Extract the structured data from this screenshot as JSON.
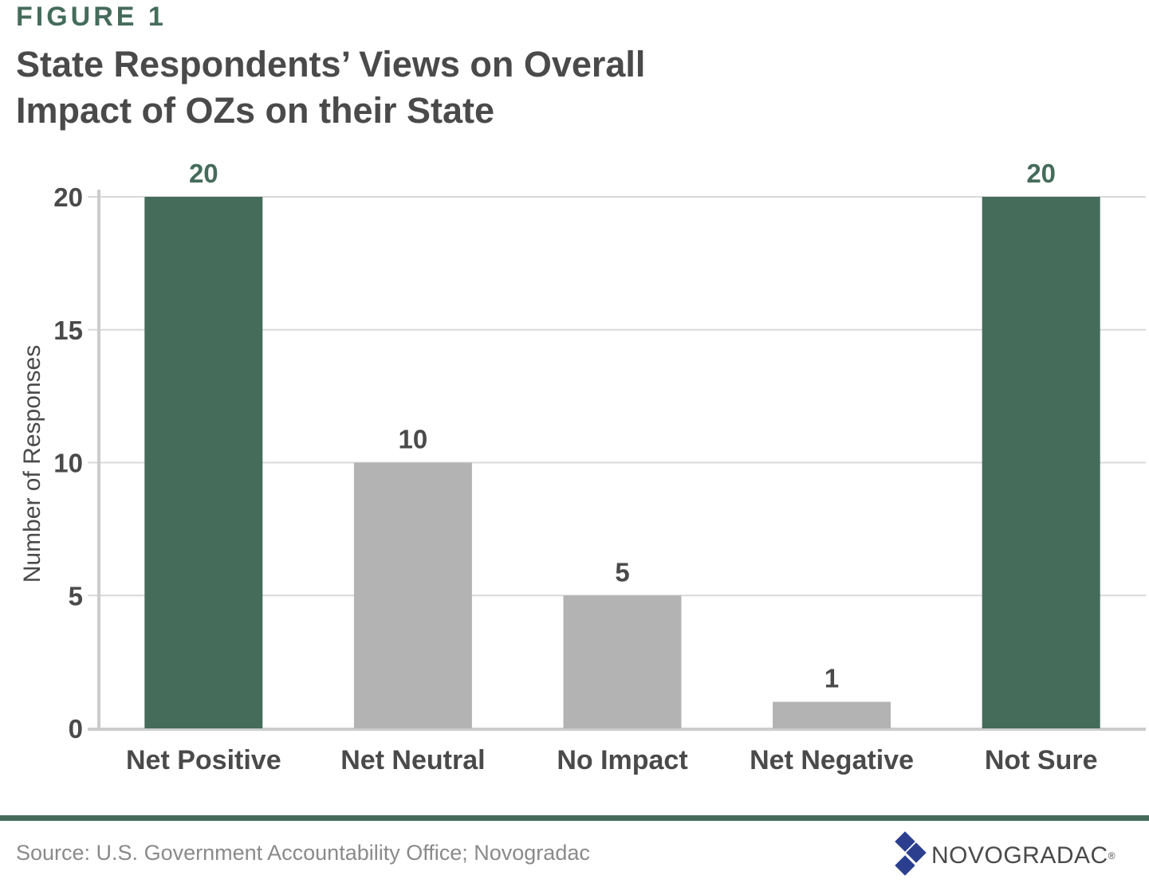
{
  "figure_label": "FIGURE 1",
  "title_lines": [
    "State Respondents’ Views on Overall",
    "Impact of OZs on their State"
  ],
  "source": "Source: U.S. Government Accountability Office; Novogradac",
  "brand": {
    "name": "NOVOGRADAC",
    "reg": "®",
    "logo_icon": "diamond-cluster-icon"
  },
  "colors": {
    "accent": "#456c5b",
    "neutral_bar": "#b3b3b3",
    "axis": "#cccccc",
    "text": "#4a4a4a"
  },
  "chart_data": {
    "type": "bar",
    "categories": [
      "Net Positive",
      "Net Neutral",
      "No Impact",
      "Net Negative",
      "Not Sure"
    ],
    "values": [
      20,
      10,
      5,
      1,
      20
    ],
    "data_labels": [
      "20",
      "10",
      "5",
      "1",
      "20"
    ],
    "bar_colors": [
      "#456c5b",
      "#b3b3b3",
      "#b3b3b3",
      "#b3b3b3",
      "#456c5b"
    ],
    "label_colors": [
      "#456c5b",
      "#4a4a4a",
      "#4a4a4a",
      "#4a4a4a",
      "#456c5b"
    ],
    "title": "State Respondents’ Views on Overall Impact of OZs on their State",
    "xlabel": "",
    "ylabel": "Number of Responses",
    "ylim": [
      0,
      20
    ],
    "yticks": [
      0,
      5,
      10,
      15,
      20
    ],
    "grid": true,
    "legend": "none"
  }
}
